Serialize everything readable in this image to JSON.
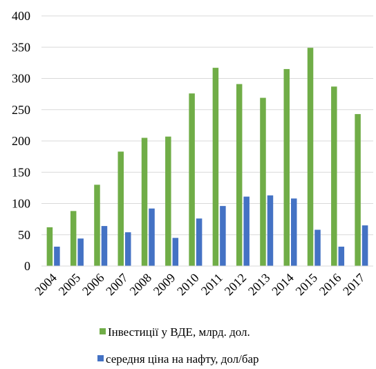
{
  "chart_data": {
    "type": "bar",
    "categories": [
      "2004",
      "2005",
      "2006",
      "2007",
      "2008",
      "2009",
      "2010",
      "2011",
      "2012",
      "2013",
      "2014",
      "2015",
      "2016",
      "2017"
    ],
    "series": [
      {
        "name": "Інвестиції у ВДЕ, млрд. дол.",
        "color": "#70ad47",
        "values": [
          62,
          88,
          130,
          183,
          205,
          207,
          276,
          317,
          291,
          269,
          315,
          349,
          287,
          243
        ]
      },
      {
        "name": "середня ціна на нафту, дол/бар",
        "color": "#4472c4",
        "values": [
          31,
          44,
          64,
          54,
          92,
          45,
          76,
          96,
          111,
          113,
          108,
          58,
          31,
          65
        ]
      }
    ],
    "ylim": [
      0,
      400
    ],
    "yticks": [
      0,
      50,
      100,
      150,
      200,
      250,
      300,
      350,
      400
    ],
    "grid": true,
    "legend_position": "bottom"
  }
}
